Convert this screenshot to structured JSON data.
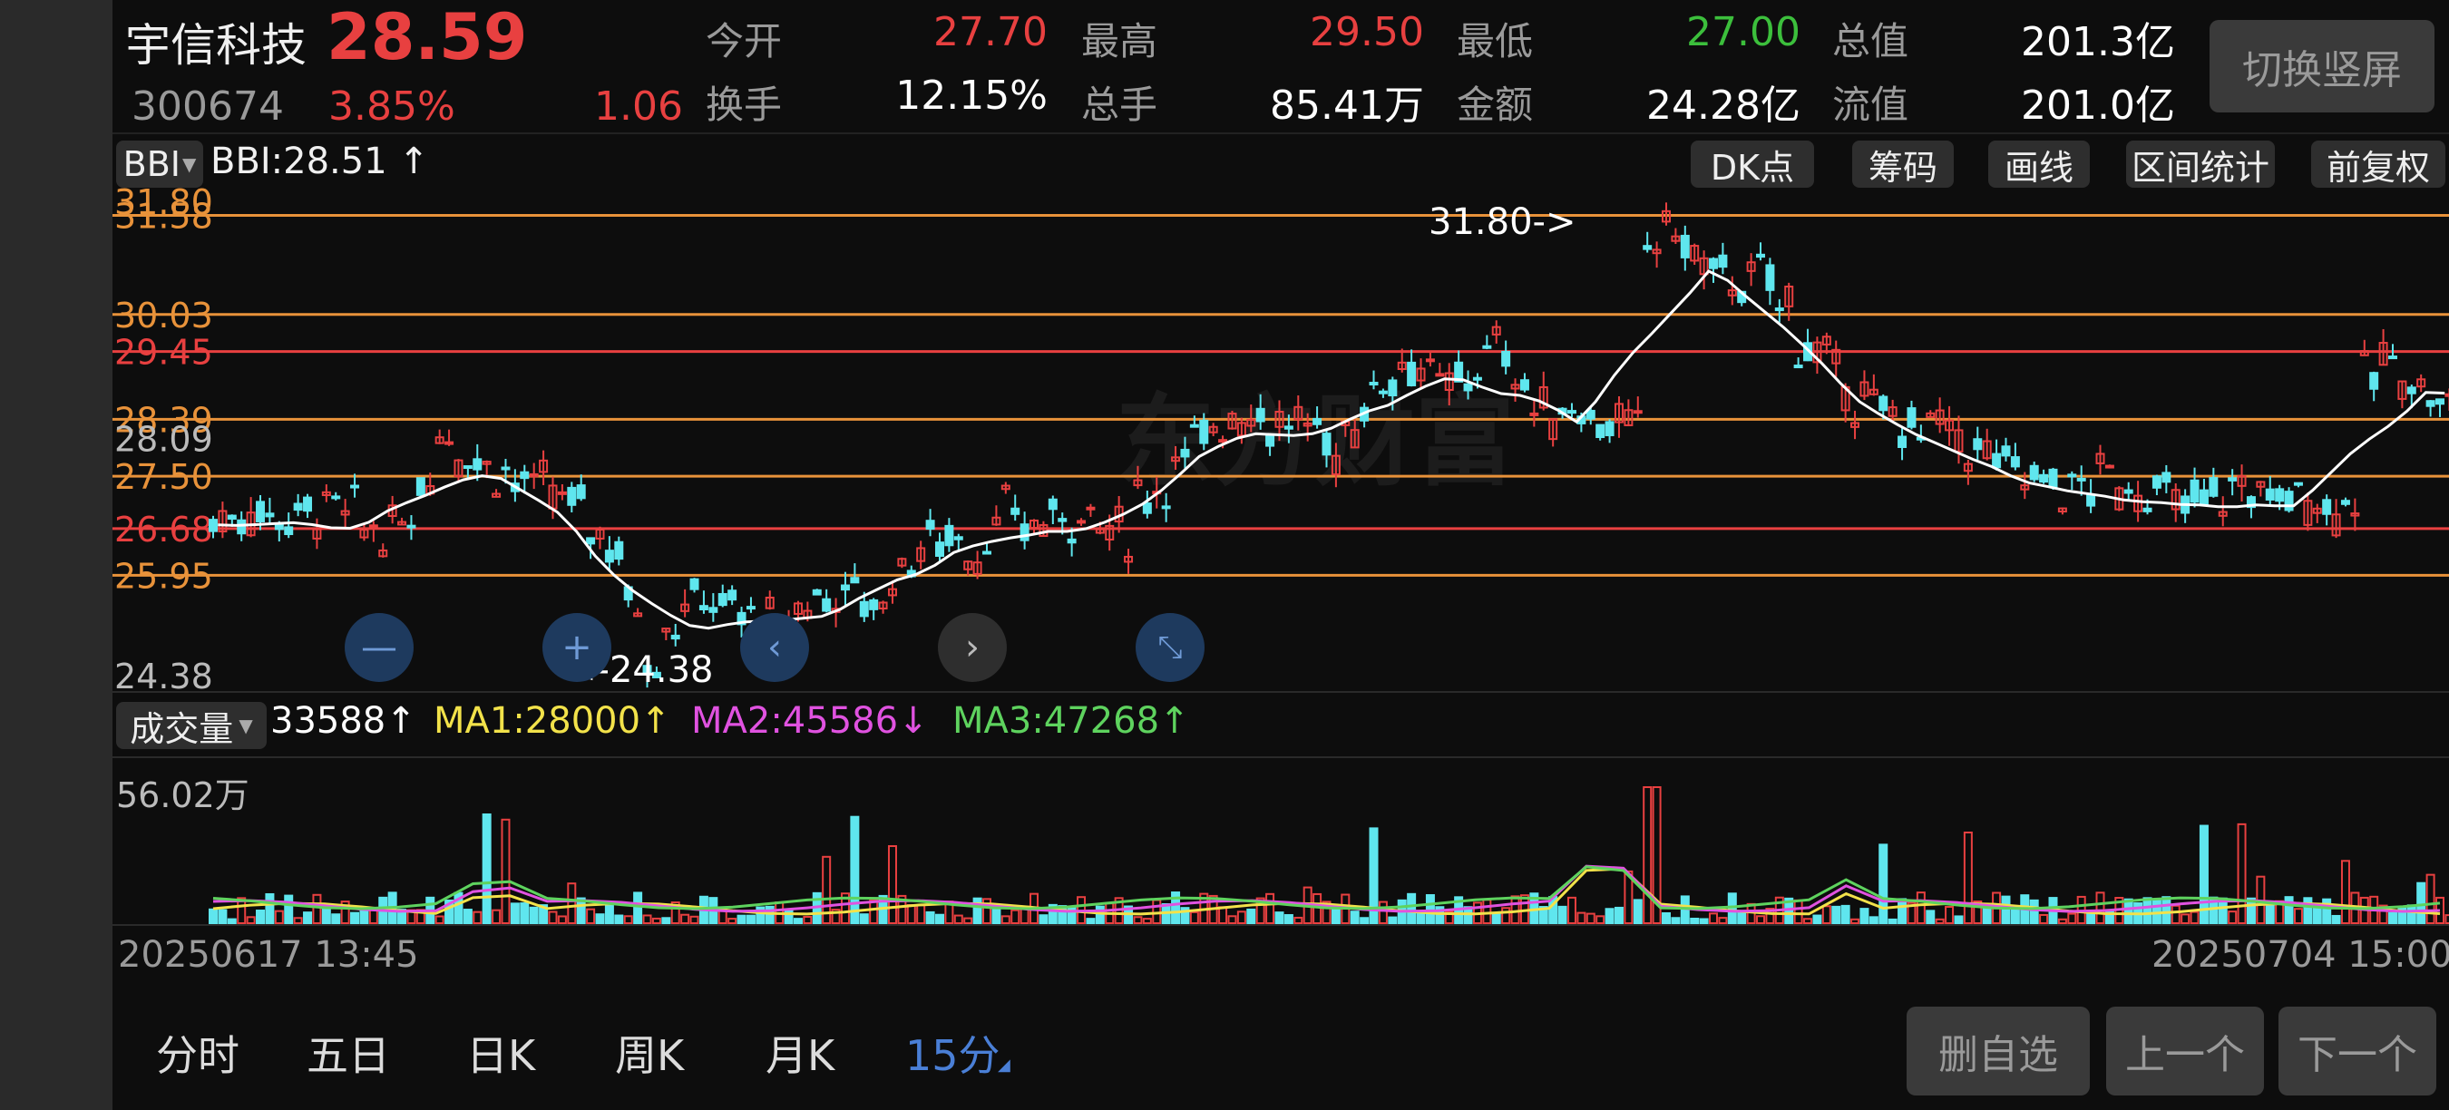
{
  "header": {
    "name": "宇信科技",
    "price": "28.59",
    "code": "300674",
    "change_pct": "3.85%",
    "change_amt": "1.06",
    "quotes": [
      {
        "label": "今开",
        "value": "27.70",
        "color": "#e84040"
      },
      {
        "label": "最高",
        "value": "29.50",
        "color": "#e84040"
      },
      {
        "label": "最低",
        "value": "27.00",
        "color": "#3cbf3c"
      },
      {
        "label": "总值",
        "value": "201.3亿",
        "color": "#ffffff"
      },
      {
        "label": "换手",
        "value": "12.15%",
        "color": "#ffffff"
      },
      {
        "label": "总手",
        "value": "85.41万",
        "color": "#ffffff"
      },
      {
        "label": "金额",
        "value": "24.28亿",
        "color": "#ffffff"
      },
      {
        "label": "流值",
        "value": "201.0亿",
        "color": "#ffffff"
      }
    ],
    "switch_label": "切换竖屏"
  },
  "toolbar": {
    "indicator": "BBI",
    "indicator_value": "BBI:28.51",
    "buttons": [
      "DK点",
      "筹码",
      "画线",
      "区间统计",
      "前复权"
    ]
  },
  "main_chart": {
    "high_marker": "31.80->",
    "low_marker": "<-24.38",
    "axis_labels": [
      "31.80",
      "31.58",
      "30.03",
      "29.45",
      "28.39",
      "28.09",
      "27.50",
      "26.68",
      "25.95",
      "24.38"
    ],
    "level_lines": [
      {
        "value": "31.58",
        "color": "#e8923a"
      },
      {
        "value": "30.03",
        "color": "#e8923a"
      },
      {
        "value": "29.45",
        "color": "#e84040"
      },
      {
        "value": "28.39",
        "color": "#e8923a"
      },
      {
        "value": "27.50",
        "color": "#e8923a"
      },
      {
        "value": "26.68",
        "color": "#e84040"
      },
      {
        "value": "25.95",
        "color": "#e8923a"
      }
    ],
    "watermark": "东方财富",
    "price_range": [
      24.38,
      31.8
    ]
  },
  "volume": {
    "selector": "成交量",
    "value": "33588",
    "ma1": "MA1:28000",
    "ma2": "MA2:45586",
    "ma3": "MA3:47268",
    "max_label": "56.02万",
    "colors": {
      "ma1": "#f2e24a",
      "ma2": "#e052e0",
      "ma3": "#5ed35e",
      "up": "#e84040",
      "down": "#5fe6ee"
    }
  },
  "dates": {
    "start": "20250617 13:45",
    "end": "20250704 15:00"
  },
  "tabs": [
    "分时",
    "五日",
    "日K",
    "周K",
    "月K",
    "15分"
  ],
  "actions": [
    "删自选",
    "上一个",
    "下一个"
  ],
  "chart_data": {
    "type": "candlestick",
    "interval": "15分",
    "bbi_close": [
      26.8,
      26.9,
      26.95,
      26.9,
      26.85,
      26.95,
      27.0,
      26.9,
      26.7,
      26.6,
      26.85,
      27.5,
      28.2,
      27.9,
      27.7,
      27.6,
      27.4,
      27.3,
      27.2,
      27.0,
      26.7,
      26.4,
      25.5,
      24.7,
      25.2,
      25.5,
      25.6,
      25.4,
      25.3,
      25.2,
      25.1,
      25.5,
      25.6,
      25.7,
      25.6,
      25.5,
      26.0,
      26.3,
      26.5,
      26.6,
      26.3,
      26.6,
      26.9,
      26.7,
      26.8,
      26.9,
      26.9,
      26.7,
      26.6,
      27.2,
      27.4,
      27.7,
      28.0,
      28.4,
      28.5,
      28.5,
      28.3,
      28.3,
      28.2,
      27.9,
      28.3,
      28.7,
      29.1,
      29.3,
      29.2,
      28.8,
      29.0,
      29.3,
      29.5,
      29.0,
      28.5,
      28.5,
      28.6,
      28.4,
      28.3,
      28.2,
      31.2,
      31.4,
      31.0,
      30.7,
      30.6,
      30.5,
      30.6,
      30.2,
      29.6,
      29.3,
      29.0,
      28.7,
      28.5,
      28.4,
      28.2,
      28.3,
      28.1,
      27.9,
      27.8,
      27.6,
      27.5,
      27.4,
      27.3,
      27.3,
      27.5,
      27.35,
      27.3,
      27.2,
      27.0,
      27.1,
      27.2,
      27.3,
      27.3,
      27.1,
      27.2,
      27.2,
      27.0,
      27.2,
      29.0,
      29.3,
      29.1,
      28.8,
      28.6
    ]
  }
}
